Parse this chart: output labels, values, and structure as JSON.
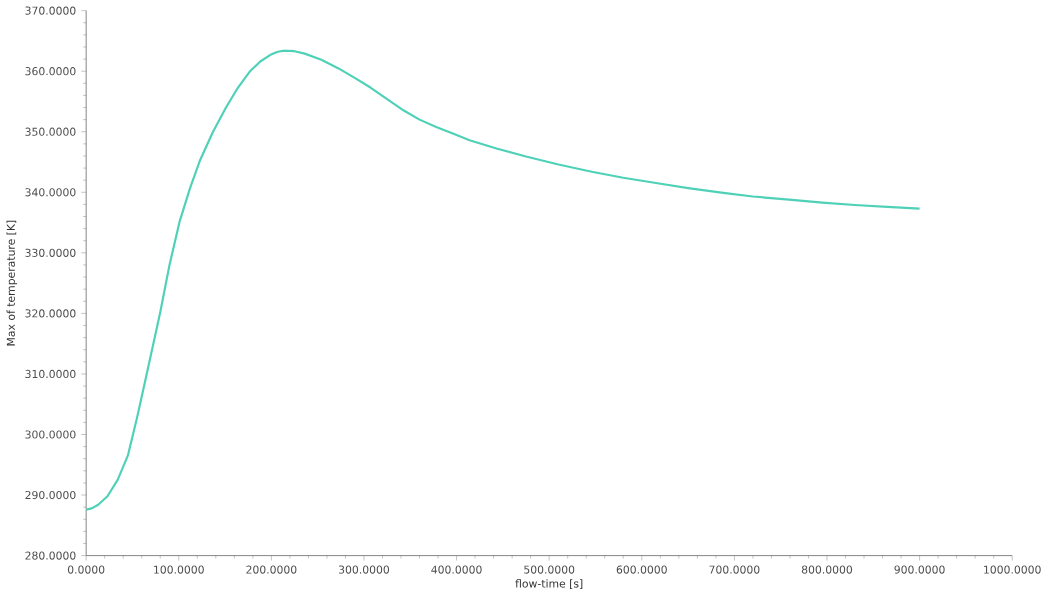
{
  "chart_data": {
    "type": "line",
    "xlabel": "flow-time [s]",
    "ylabel": "Max of temperature [K]",
    "xlim": [
      0,
      1000
    ],
    "ylim": [
      280,
      370
    ],
    "xticks": [
      {
        "value": 0,
        "label": "0.0000"
      },
      {
        "value": 100,
        "label": "100.0000"
      },
      {
        "value": 200,
        "label": "200.0000"
      },
      {
        "value": 300,
        "label": "300.0000"
      },
      {
        "value": 400,
        "label": "400.0000"
      },
      {
        "value": 500,
        "label": "500.0000"
      },
      {
        "value": 600,
        "label": "600.0000"
      },
      {
        "value": 700,
        "label": "700.0000"
      },
      {
        "value": 800,
        "label": "800.0000"
      },
      {
        "value": 900,
        "label": "900.0000"
      },
      {
        "value": 1000,
        "label": "1000.0000"
      }
    ],
    "yticks": [
      {
        "value": 280,
        "label": "280.0000"
      },
      {
        "value": 290,
        "label": "290.0000"
      },
      {
        "value": 300,
        "label": "300.0000"
      },
      {
        "value": 310,
        "label": "310.0000"
      },
      {
        "value": 320,
        "label": "320.0000"
      },
      {
        "value": 330,
        "label": "330.0000"
      },
      {
        "value": 340,
        "label": "340.0000"
      },
      {
        "value": 350,
        "label": "350.0000"
      },
      {
        "value": 360,
        "label": "360.0000"
      },
      {
        "value": 370,
        "label": "370.0000"
      }
    ],
    "grid": false,
    "marker": "none",
    "line_style": "solid",
    "x": [
      0,
      6,
      13,
      23,
      34,
      45,
      55,
      66,
      80,
      90,
      101,
      112,
      123,
      137,
      151,
      164,
      177,
      188,
      199,
      207,
      214,
      225,
      236,
      254,
      272,
      290,
      307,
      325,
      343,
      360,
      378,
      396,
      414,
      444,
      475,
      510,
      546,
      580,
      617,
      650,
      688,
      720,
      759,
      795,
      830,
      865,
      900
    ],
    "series": [
      {
        "color": "#4fd1b8",
        "values": [
          287.6,
          287.8,
          288.4,
          289.8,
          292.5,
          296.5,
          302.8,
          310.4,
          320.2,
          328.0,
          335.2,
          340.6,
          345.3,
          350.0,
          354.0,
          357.3,
          360.0,
          361.6,
          362.7,
          363.2,
          363.4,
          363.3,
          362.9,
          361.9,
          360.5,
          358.9,
          357.3,
          355.4,
          353.5,
          352.0,
          350.8,
          349.7,
          348.6,
          347.2,
          345.9,
          344.6,
          343.4,
          342.4,
          341.5,
          340.7,
          339.9,
          339.3,
          338.8,
          338.3,
          337.9,
          337.6,
          337.3
        ]
      }
    ]
  }
}
